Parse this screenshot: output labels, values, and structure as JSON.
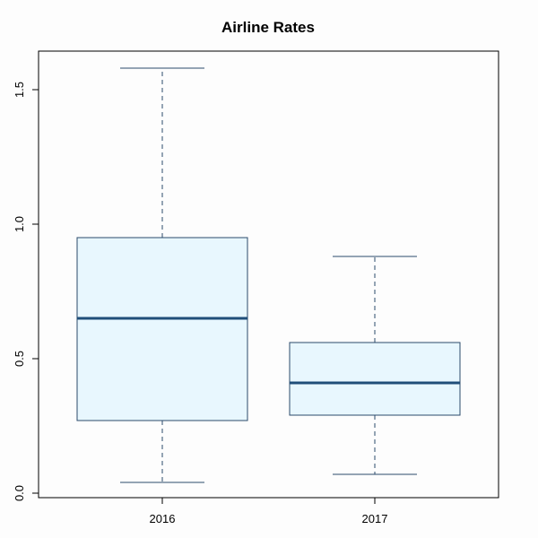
{
  "chart_data": {
    "type": "boxplot",
    "title": "Airline Rates",
    "xlabel": "",
    "ylabel": "",
    "ylim": [
      0,
      1.6
    ],
    "yticks": [
      0.0,
      0.5,
      1.0,
      1.5
    ],
    "ytick_labels": [
      "0.0",
      "0.5",
      "1.0",
      "1.5"
    ],
    "categories": [
      "2016",
      "2017"
    ],
    "boxes": [
      {
        "category": "2016",
        "min": 0.04,
        "q1": 0.27,
        "median": 0.65,
        "q3": 0.95,
        "max": 1.58
      },
      {
        "category": "2017",
        "min": 0.07,
        "q1": 0.29,
        "median": 0.41,
        "q3": 0.56,
        "max": 0.88
      }
    ],
    "colors": {
      "box_fill": "#e8f7fe",
      "box_stroke": "#2a4a6b",
      "median": "#1f4e79",
      "whisker": "#2a4a6b",
      "axis": "#000000",
      "background": "#fdfdfd"
    },
    "grid": false
  }
}
